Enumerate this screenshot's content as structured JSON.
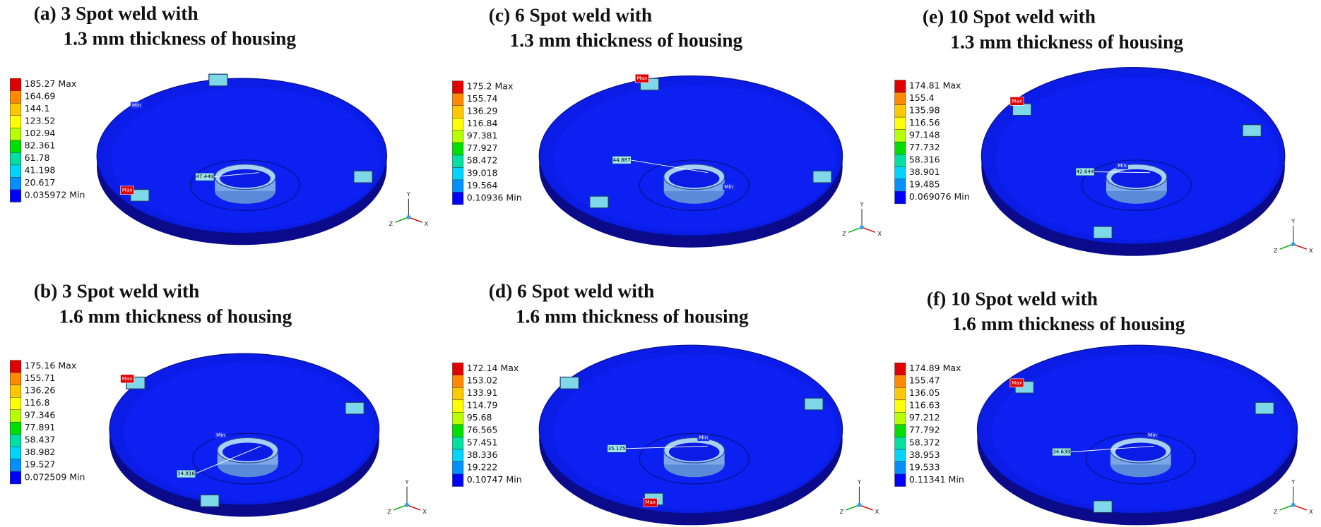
{
  "triad_labels": [
    "X",
    "Y",
    "Z"
  ],
  "max_tag": "Max",
  "min_tag": "Min",
  "panels": [
    {
      "title": [
        "(a) 3 Spot weld with",
        "1.3 mm thickness of housing"
      ],
      "legend": [
        "185.27 Max",
        "164.69",
        "144.1",
        "123.52",
        "102.94",
        "82.361",
        "61.78",
        "41.198",
        "20.617",
        "0.035972 Min"
      ],
      "probe": "47.449"
    },
    {
      "title": [
        "(b) 3 Spot weld with",
        "1.6 mm thickness of housing"
      ],
      "legend": [
        "175.16 Max",
        "155.71",
        "136.26",
        "116.8",
        "97.346",
        "77.891",
        "58.437",
        "38.982",
        "19.527",
        "0.072509 Min"
      ],
      "probe": "34.816"
    },
    {
      "title": [
        "(c) 6 Spot weld with",
        "1.3 mm thickness of housing"
      ],
      "legend": [
        "175.2 Max",
        "155.74",
        "136.29",
        "116.84",
        "97.381",
        "77.927",
        "58.472",
        "39.018",
        "19.564",
        "0.10936 Min"
      ],
      "probe": "44.887"
    },
    {
      "title": [
        "(d) 6 Spot weld with",
        "1.6 mm thickness of housing"
      ],
      "legend": [
        "172.14 Max",
        "153.02",
        "133.91",
        "114.79",
        "95.68",
        "76.565",
        "57.451",
        "38.336",
        "19.222",
        "0.10747 Min"
      ],
      "probe": "35.175"
    },
    {
      "title": [
        "(e) 10 Spot weld with",
        "1.3 mm thickness of housing"
      ],
      "legend": [
        "174.81 Max",
        "155.4",
        "135.98",
        "116.56",
        "97.148",
        "77.732",
        "58.316",
        "38.901",
        "19.485",
        "0.069076 Min"
      ],
      "probe": "42.644"
    },
    {
      "title": [
        "(f) 10 Spot weld with",
        "1.6 mm thickness of housing"
      ],
      "legend": [
        "174.89 Max",
        "155.47",
        "136.05",
        "116.63",
        "97.212",
        "77.792",
        "58.372",
        "38.953",
        "19.533",
        "0.11341 Min"
      ],
      "probe": "34.639"
    }
  ]
}
